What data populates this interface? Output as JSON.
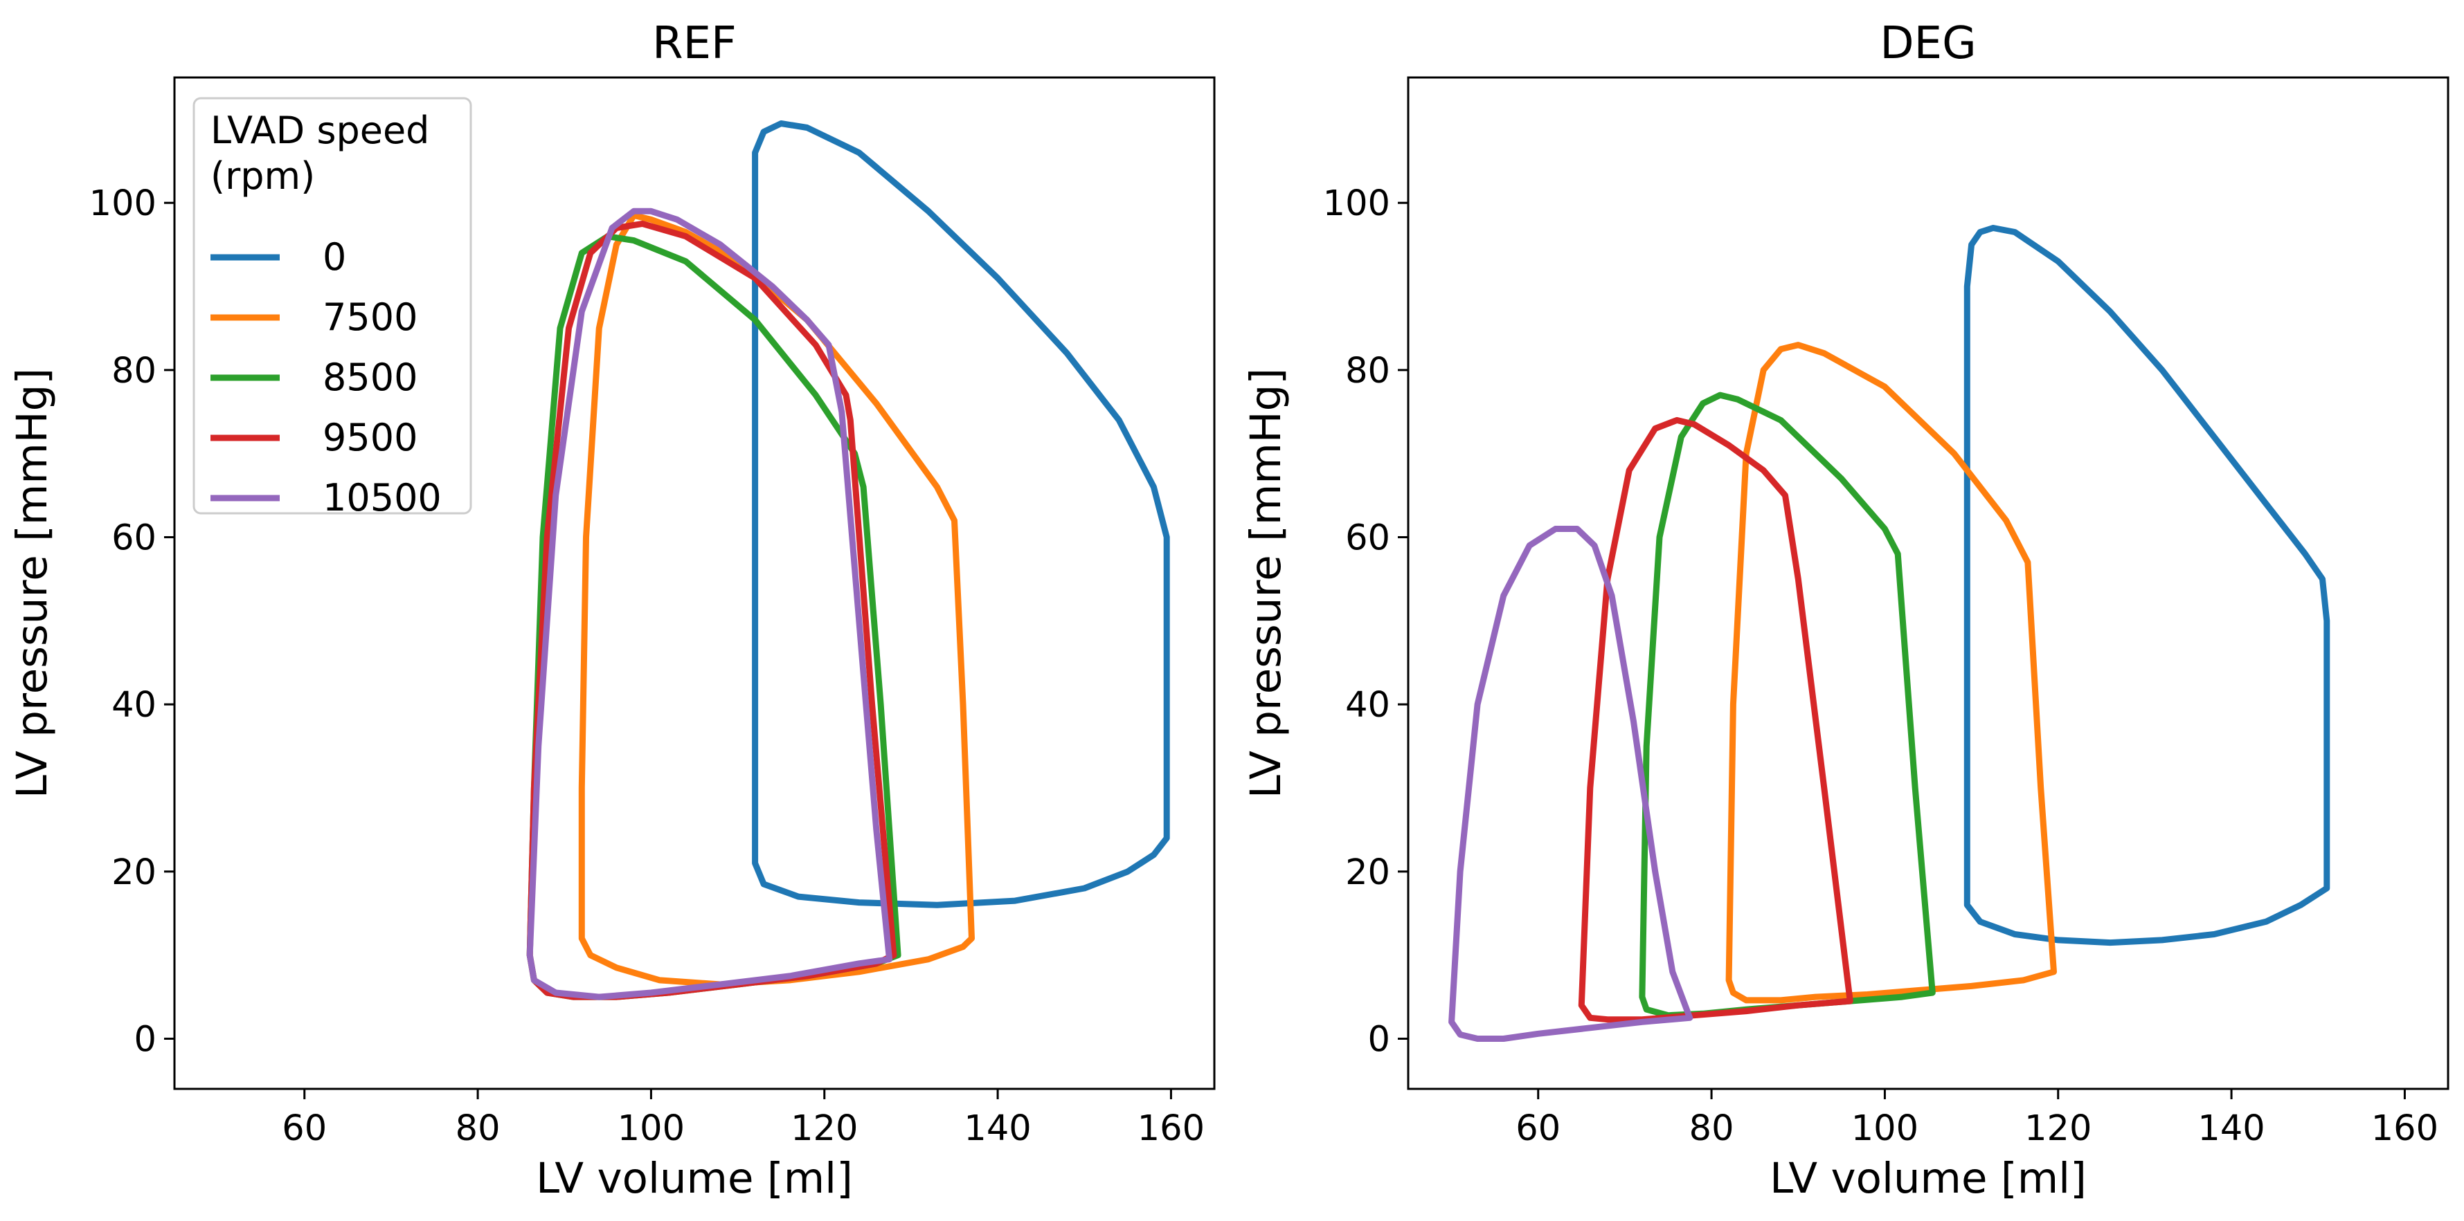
{
  "chart_data": [
    {
      "type": "line",
      "title": "REF",
      "xlabel": "LV volume [ml]",
      "ylabel": "LV pressure [mmHg]",
      "xlim": [
        45,
        165
      ],
      "ylim": [
        -6,
        115
      ],
      "xticks": [
        60,
        80,
        100,
        120,
        140,
        160
      ],
      "yticks": [
        0,
        20,
        40,
        60,
        80,
        100
      ],
      "grid": false,
      "legend": {
        "title": "LVAD speed\n(rpm)",
        "title_lines": [
          "LVAD speed",
          "(rpm)"
        ],
        "placement": "top-left",
        "entries": [
          "0",
          "7500",
          "8500",
          "9500",
          "10500"
        ]
      },
      "series": [
        {
          "name": "0",
          "color": "#1f77b4",
          "x": [
            112,
            112,
            112,
            112,
            113,
            115,
            118,
            124,
            132,
            140,
            148,
            154,
            158,
            159.5,
            159.5,
            158,
            155,
            150,
            142,
            133,
            124,
            117,
            113,
            112,
            112
          ],
          "y": [
            24,
            60,
            100,
            106,
            108.5,
            109.5,
            109,
            106,
            99,
            91,
            82,
            74,
            66,
            60,
            24,
            22,
            20,
            18,
            16.5,
            16,
            16.3,
            17,
            18.5,
            21,
            24
          ]
        },
        {
          "name": "7500",
          "color": "#ff7f0e",
          "x": [
            92,
            92,
            92.5,
            94,
            96,
            98,
            100,
            104,
            110,
            118,
            126,
            133,
            135,
            136,
            137,
            136,
            132,
            124,
            116,
            108,
            101,
            96,
            93,
            92
          ],
          "y": [
            12,
            30,
            60,
            85,
            95,
            98.5,
            98,
            96.5,
            93,
            86,
            76,
            66,
            62,
            40,
            12,
            11,
            9.5,
            8,
            7,
            6.5,
            7,
            8.5,
            10,
            12
          ]
        },
        {
          "name": "8500",
          "color": "#2ca02c",
          "x": [
            86,
            86.5,
            87.5,
            89.5,
            92,
            95,
            98,
            104,
            112,
            119,
            123.5,
            124.5,
            126.5,
            128.5,
            126,
            118,
            110,
            102,
            96,
            91,
            88,
            86.5,
            86
          ],
          "y": [
            10,
            30,
            60,
            85,
            94,
            96,
            95.5,
            93,
            86,
            77,
            70,
            66,
            40,
            10,
            9,
            7.5,
            6.5,
            5.5,
            5,
            5,
            5.5,
            7,
            10
          ]
        },
        {
          "name": "9500",
          "color": "#d62728",
          "x": [
            86,
            86.5,
            88,
            90.5,
            93,
            96,
            99,
            104,
            112,
            119,
            122.5,
            123,
            125.5,
            128,
            126,
            118,
            110,
            102,
            96,
            91,
            88,
            86.5,
            86
          ],
          "y": [
            10,
            30,
            60,
            85,
            94,
            97,
            97.5,
            96,
            91,
            83,
            77,
            74,
            40,
            10,
            9,
            7.5,
            6.5,
            5.5,
            5,
            5,
            5.5,
            7,
            10
          ]
        },
        {
          "name": "10500",
          "color": "#9467bd",
          "x": [
            86,
            87,
            89,
            92,
            95.5,
            98,
            100,
            103,
            108,
            114,
            118,
            120.5,
            122,
            124,
            126,
            127.5,
            124,
            116,
            108,
            100,
            94,
            89,
            86.5,
            86
          ],
          "y": [
            10,
            35,
            65,
            87,
            97,
            99,
            99,
            98,
            95,
            90,
            86,
            83,
            75,
            50,
            25,
            9.5,
            9,
            7.5,
            6.5,
            5.5,
            5,
            5.5,
            7,
            10
          ]
        }
      ]
    },
    {
      "type": "line",
      "title": "DEG",
      "xlabel": "LV volume [ml]",
      "ylabel": "LV pressure [mmHg]",
      "xlim": [
        45,
        165
      ],
      "ylim": [
        -6,
        115
      ],
      "xticks": [
        60,
        80,
        100,
        120,
        140,
        160
      ],
      "yticks": [
        0,
        20,
        40,
        60,
        80,
        100
      ],
      "grid": false,
      "series": [
        {
          "name": "0",
          "color": "#1f77b4",
          "x": [
            109.5,
            109.5,
            109.5,
            110,
            111,
            112.5,
            115,
            120,
            126,
            132,
            138,
            144,
            148.5,
            150.5,
            151,
            151,
            148,
            144,
            138,
            132,
            126,
            120,
            115,
            111,
            109.5,
            109.5
          ],
          "y": [
            19,
            50,
            90,
            95,
            96.5,
            97,
            96.5,
            93,
            87,
            80,
            72,
            64,
            58,
            55,
            50,
            18,
            16,
            14,
            12.5,
            11.8,
            11.5,
            11.8,
            12.5,
            14,
            16,
            19
          ]
        },
        {
          "name": "7500",
          "color": "#ff7f0e",
          "x": [
            82,
            82.5,
            84,
            86,
            88,
            90,
            93,
            100,
            108,
            114,
            116.5,
            118,
            119.5,
            116,
            110,
            104,
            98,
            92,
            88,
            84,
            82.5,
            82
          ],
          "y": [
            7,
            40,
            70,
            80,
            82.5,
            83,
            82,
            78,
            70,
            62,
            57,
            30,
            8,
            7,
            6.3,
            5.8,
            5.3,
            5,
            4.6,
            4.6,
            5.5,
            7
          ]
        },
        {
          "name": "8500",
          "color": "#2ca02c",
          "x": [
            72,
            72.5,
            74,
            76.5,
            79,
            81,
            83,
            88,
            95,
            100,
            101.5,
            103.5,
            105.5,
            102,
            96,
            90,
            84,
            79,
            75,
            72.5,
            72
          ],
          "y": [
            5,
            35,
            60,
            72,
            76,
            77,
            76.5,
            74,
            67,
            61,
            58,
            30,
            5.5,
            5,
            4.5,
            4,
            3.5,
            3,
            2.8,
            3.5,
            5
          ]
        },
        {
          "name": "9500",
          "color": "#d62728",
          "x": [
            65,
            66,
            68,
            70.5,
            73.5,
            76,
            78,
            82,
            86,
            88.5,
            90,
            93,
            96,
            90,
            84,
            78,
            72,
            68,
            66,
            65
          ],
          "y": [
            4,
            30,
            55,
            68,
            73,
            74,
            73.5,
            71,
            68,
            65,
            55,
            30,
            4.5,
            4,
            3.3,
            2.8,
            2.3,
            2.3,
            2.5,
            4
          ]
        },
        {
          "name": "10500",
          "color": "#9467bd",
          "x": [
            50,
            51,
            53,
            56,
            59,
            62,
            64.5,
            66.5,
            68.5,
            71,
            73.5,
            75.5,
            77.5,
            72,
            66,
            60,
            56,
            53,
            51,
            50
          ],
          "y": [
            2,
            20,
            40,
            53,
            59,
            61,
            61,
            59,
            53,
            38,
            20,
            8,
            2.5,
            2,
            1.3,
            0.6,
            0,
            0,
            0.5,
            2
          ]
        }
      ]
    }
  ]
}
